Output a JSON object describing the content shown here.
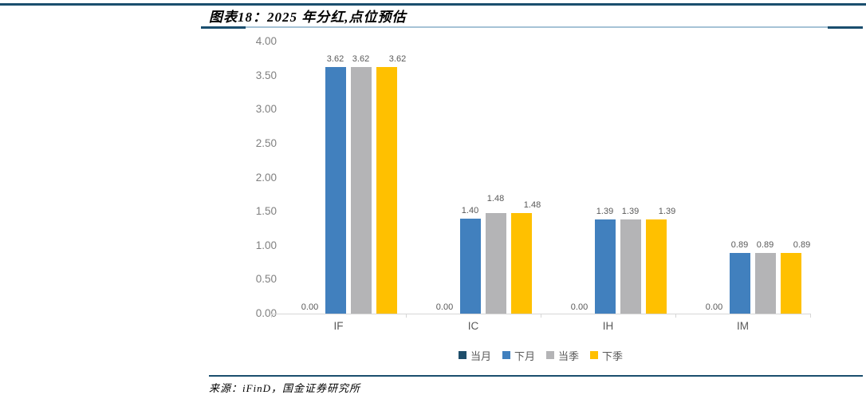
{
  "header": {
    "title": "图表18：2025 年分红,点位预估"
  },
  "theme": {
    "rule_color": "#1A4E6E",
    "underline_light": "#A6C3D6",
    "axis_color": "#D6D6D6",
    "tick_label_color": "#808080",
    "data_label_color": "#595959"
  },
  "chart_data": {
    "type": "bar",
    "title": "2025 年分红点位预估",
    "categories": [
      "IF",
      "IC",
      "IH",
      "IM"
    ],
    "series": [
      {
        "name": "当月",
        "color": "#1F4E6B",
        "values": [
          0.0,
          0.0,
          0.0,
          0.0
        ]
      },
      {
        "name": "下月",
        "color": "#4180BE",
        "values": [
          3.62,
          1.4,
          1.39,
          0.89
        ]
      },
      {
        "name": "当季",
        "color": "#B4B4B6",
        "values": [
          3.62,
          1.48,
          1.39,
          0.89
        ]
      },
      {
        "name": "下季",
        "color": "#FFC000",
        "values": [
          3.62,
          1.48,
          1.39,
          0.89
        ]
      }
    ],
    "y_axis": {
      "min": 0,
      "max": 4,
      "step": 0.5,
      "tick_labels": [
        "0.00",
        "0.50",
        "1.00",
        "1.50",
        "2.00",
        "2.50",
        "3.00",
        "3.50",
        "4.00"
      ]
    },
    "data_labels": true,
    "grid": false,
    "legend_position": "bottom",
    "label_tweaks": {
      "last_series_dx": 14,
      "raised": [
        {
          "category": "IC",
          "series": "当季",
          "dy": 8
        }
      ]
    }
  },
  "footer": {
    "source_label": "来源：iFinD，国金证券研究所"
  }
}
